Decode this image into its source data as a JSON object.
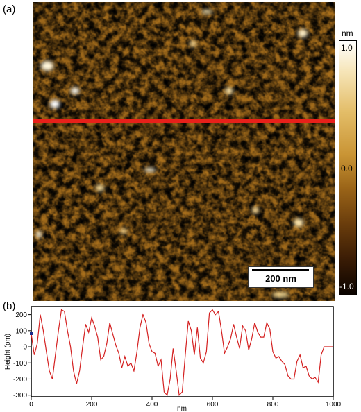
{
  "panel_a_label": "(a)",
  "panel_b_label": "(b)",
  "colorbar": {
    "unit": "nm",
    "max_label": "1.0",
    "mid_label": "0.0",
    "min_label": "-1.0"
  },
  "scale_bar_label": "200 nm",
  "colors": {
    "line_cut": "#e8201a",
    "profile_line": "#d42020",
    "afm_dark": "#5a3208",
    "afm_mid": "#b0791e",
    "afm_light": "#f3d890"
  },
  "chart_data": {
    "type": "line",
    "xlabel": "nm",
    "ylabel": "Height (pm)",
    "xlim": [
      0,
      1000
    ],
    "ylim": [
      -310,
      250
    ],
    "xticks": [
      0,
      200,
      400,
      600,
      800,
      1000
    ],
    "yticks": [
      -300,
      -200,
      -100,
      0,
      100,
      200
    ],
    "series": [
      {
        "x": [
          0,
          10,
          20,
          30,
          40,
          50,
          60,
          70,
          80,
          90,
          100,
          110,
          120,
          130,
          140,
          150,
          160,
          170,
          180,
          190,
          200,
          210,
          220,
          230,
          240,
          250,
          260,
          270,
          280,
          290,
          300,
          310,
          320,
          330,
          340,
          350,
          360,
          370,
          380,
          390,
          400,
          410,
          420,
          430,
          440,
          450,
          460,
          470,
          480,
          490,
          500,
          510,
          520,
          530,
          540,
          550,
          560,
          570,
          580,
          590,
          600,
          610,
          620,
          630,
          640,
          650,
          660,
          670,
          680,
          690,
          700,
          710,
          720,
          730,
          740,
          750,
          760,
          770,
          780,
          790,
          800,
          810,
          820,
          830,
          840,
          850,
          860,
          870,
          880,
          890,
          900,
          910,
          920,
          930,
          940,
          950,
          960,
          970,
          980,
          990,
          1000
        ],
        "y": [
          80,
          -50,
          20,
          200,
          100,
          -30,
          -150,
          -200,
          -50,
          100,
          230,
          220,
          100,
          0,
          -150,
          -230,
          -150,
          0,
          140,
          90,
          180,
          130,
          60,
          -80,
          -60,
          20,
          150,
          80,
          10,
          -40,
          -130,
          -60,
          -120,
          -100,
          -150,
          -30,
          120,
          200,
          150,
          20,
          -30,
          -40,
          -120,
          -80,
          -280,
          -300,
          -200,
          -10,
          -150,
          -300,
          -280,
          -50,
          160,
          100,
          -50,
          120,
          -70,
          -100,
          -30,
          210,
          230,
          200,
          220,
          100,
          -40,
          0,
          50,
          140,
          60,
          -10,
          130,
          100,
          -20,
          50,
          150,
          90,
          60,
          60,
          150,
          110,
          -30,
          -70,
          -60,
          -90,
          -110,
          -180,
          -200,
          -200,
          -90,
          -50,
          -130,
          -120,
          -180,
          -200,
          -190,
          -220,
          -50,
          0,
          0,
          0,
          0
        ]
      }
    ]
  }
}
